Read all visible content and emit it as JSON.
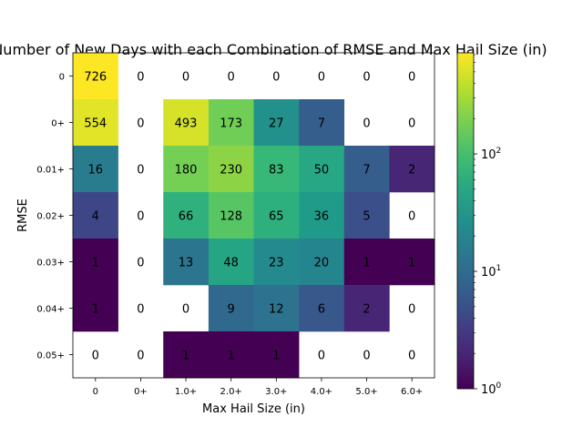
{
  "chart_data": {
    "type": "heatmap",
    "title": "Number of New Days with each Combination of RMSE and Max Hail Size (in)",
    "xlabel": "Max Hail Size (in)",
    "ylabel": "RMSE",
    "x_categories": [
      "0",
      "0+",
      "1.0+",
      "2.0+",
      "3.0+",
      "4.0+",
      "5.0+",
      "6.0+"
    ],
    "y_categories": [
      "0",
      "0+",
      "0.01+",
      "0.02+",
      "0.03+",
      "0.04+",
      "0.05+"
    ],
    "values": [
      [
        726,
        0,
        0,
        0,
        0,
        0,
        0,
        0
      ],
      [
        554,
        0,
        493,
        173,
        27,
        7,
        0,
        0
      ],
      [
        16,
        0,
        180,
        230,
        83,
        50,
        7,
        2
      ],
      [
        4,
        0,
        66,
        128,
        65,
        36,
        5,
        0
      ],
      [
        1,
        0,
        13,
        48,
        23,
        20,
        1,
        1
      ],
      [
        1,
        0,
        0,
        9,
        12,
        6,
        2,
        0
      ],
      [
        0,
        0,
        1,
        1,
        1,
        0,
        0,
        0
      ]
    ],
    "colormap": "viridis",
    "color_scale": "log",
    "color_range": [
      1,
      726
    ],
    "zero_color": "#ffffff",
    "colorbar": {
      "ticks": [
        {
          "value": 1,
          "base": "10",
          "exp": "0"
        },
        {
          "value": 10,
          "base": "10",
          "exp": "1"
        },
        {
          "value": 100,
          "base": "10",
          "exp": "2"
        }
      ]
    }
  }
}
